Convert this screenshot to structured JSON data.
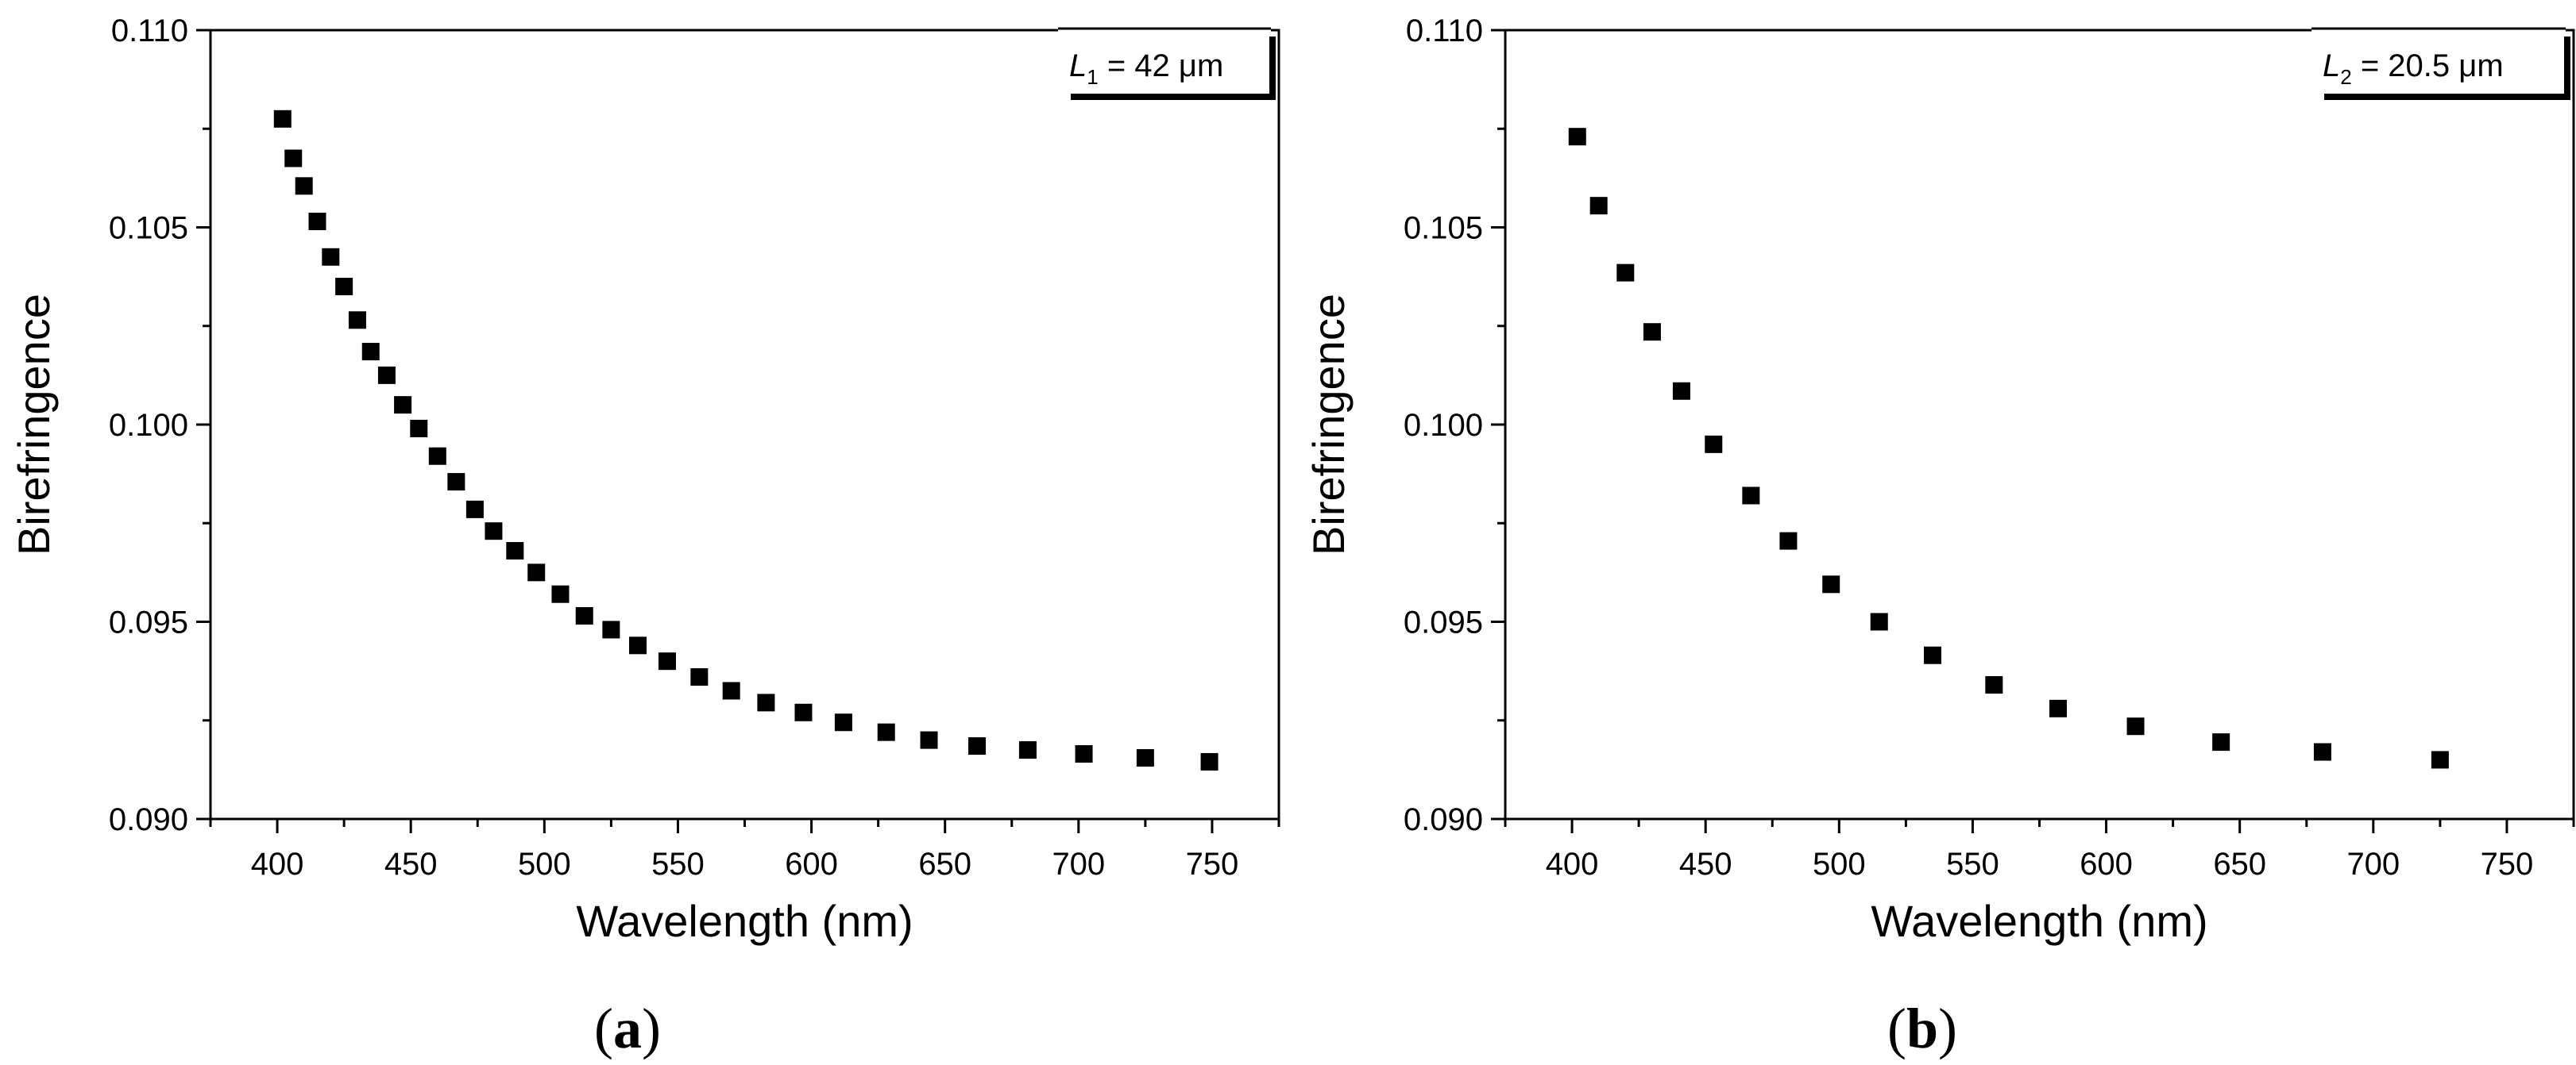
{
  "chart_data": [
    {
      "type": "scatter",
      "panel_label": "(a)",
      "panel_letter": "a",
      "legend": {
        "symbol": "L",
        "subscript": "1",
        "text": " = 42 μm"
      },
      "xlabel": "Wavelength (nm)",
      "ylabel": "Birefringence",
      "xlim": [
        375,
        775
      ],
      "ylim": [
        0.09,
        0.11
      ],
      "xticks": [
        400,
        450,
        500,
        550,
        600,
        650,
        700,
        750
      ],
      "xtick_labels": [
        "400",
        "450",
        "500",
        "550",
        "600",
        "650",
        "700",
        "750"
      ],
      "yticks": [
        0.09,
        0.095,
        0.1,
        0.105,
        0.11
      ],
      "ytick_labels": [
        "0.090",
        "0.095",
        "0.100",
        "0.105",
        "0.110"
      ],
      "x": [
        402,
        406,
        410,
        415,
        420,
        425,
        430,
        435,
        441,
        447,
        453,
        460,
        467,
        474,
        481,
        489,
        497,
        506,
        515,
        525,
        535,
        546,
        558,
        570,
        583,
        597,
        612,
        628,
        644,
        662,
        681,
        702,
        725,
        749
      ],
      "y": [
        0.10775,
        0.10675,
        0.10605,
        0.10515,
        0.10425,
        0.1035,
        0.10265,
        0.10185,
        0.10125,
        0.1005,
        0.0999,
        0.0992,
        0.09855,
        0.09785,
        0.0973,
        0.0968,
        0.09625,
        0.0957,
        0.09515,
        0.0948,
        0.0944,
        0.094,
        0.0936,
        0.09325,
        0.09295,
        0.0927,
        0.09245,
        0.0922,
        0.092,
        0.09185,
        0.09175,
        0.09165,
        0.09155,
        0.09145
      ]
    },
    {
      "type": "scatter",
      "panel_label": "(b)",
      "panel_letter": "b",
      "legend": {
        "symbol": "L",
        "subscript": "2",
        "text": " = 20.5 μm"
      },
      "xlabel": "Wavelength (nm)",
      "ylabel": "Birefringence",
      "xlim": [
        375,
        775
      ],
      "ylim": [
        0.09,
        0.11
      ],
      "xticks": [
        400,
        450,
        500,
        550,
        600,
        650,
        700,
        750
      ],
      "xtick_labels": [
        "400",
        "450",
        "500",
        "550",
        "600",
        "650",
        "700",
        "750"
      ],
      "yticks": [
        0.09,
        0.095,
        0.1,
        0.105,
        0.11
      ],
      "ytick_labels": [
        "0.090",
        "0.095",
        "0.100",
        "0.105",
        "0.110"
      ],
      "x": [
        402,
        410,
        420,
        430,
        441,
        453,
        467,
        481,
        497,
        515,
        535,
        558,
        582,
        611,
        643,
        681,
        725
      ],
      "y": [
        0.1073,
        0.10555,
        0.10385,
        0.10235,
        0.10085,
        0.0995,
        0.0982,
        0.09705,
        0.09595,
        0.095,
        0.09415,
        0.0934,
        0.0928,
        0.09235,
        0.09195,
        0.0917,
        0.0915
      ]
    }
  ]
}
